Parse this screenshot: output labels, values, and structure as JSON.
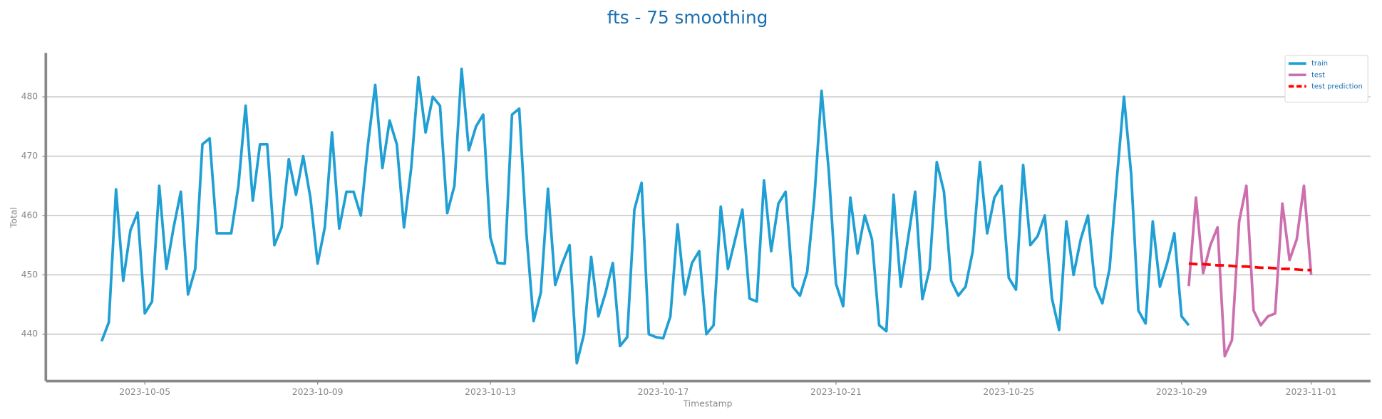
{
  "chart_data": {
    "type": "line",
    "title": "fts - 75 smoothing",
    "x_label": "Timestamp",
    "y_label": "Total",
    "xlim": [
      "2023-10-02 17:00",
      "2023-11-02 09:00"
    ],
    "ylim": [
      432.1,
      487.4
    ],
    "xticks": [
      "2023-10-05",
      "2023-10-09",
      "2023-10-13",
      "2023-10-17",
      "2023-10-21",
      "2023-10-25",
      "2023-10-29",
      "2023-11-01"
    ],
    "yticks": [
      440,
      450,
      460,
      470,
      480
    ],
    "grid": true,
    "legend": "upper right",
    "series": [
      {
        "name": "train",
        "color": "#1f9fd4",
        "linestyle": "solid",
        "x": [
          "2023-10-04 00:00",
          "2023-10-04 04:00",
          "2023-10-04 08:00",
          "2023-10-04 12:00",
          "2023-10-04 16:00",
          "2023-10-04 20:00",
          "2023-10-05 00:00",
          "2023-10-05 04:00",
          "2023-10-05 08:00",
          "2023-10-05 12:00",
          "2023-10-05 16:00",
          "2023-10-05 20:00",
          "2023-10-06 00:00",
          "2023-10-06 04:00",
          "2023-10-06 08:00",
          "2023-10-06 12:00",
          "2023-10-06 16:00",
          "2023-10-06 20:00",
          "2023-10-07 00:00",
          "2023-10-07 04:00",
          "2023-10-07 08:00",
          "2023-10-07 12:00",
          "2023-10-07 16:00",
          "2023-10-07 20:00",
          "2023-10-08 00:00",
          "2023-10-08 04:00",
          "2023-10-08 08:00",
          "2023-10-08 12:00",
          "2023-10-08 16:00",
          "2023-10-08 20:00",
          "2023-10-09 00:00",
          "2023-10-09 04:00",
          "2023-10-09 08:00",
          "2023-10-09 12:00",
          "2023-10-09 16:00",
          "2023-10-09 20:00",
          "2023-10-10 00:00",
          "2023-10-10 04:00",
          "2023-10-10 08:00",
          "2023-10-10 12:00",
          "2023-10-10 16:00",
          "2023-10-10 20:00",
          "2023-10-11 00:00",
          "2023-10-11 04:00",
          "2023-10-11 08:00",
          "2023-10-11 12:00",
          "2023-10-11 16:00",
          "2023-10-11 20:00",
          "2023-10-12 00:00",
          "2023-10-12 04:00",
          "2023-10-12 08:00",
          "2023-10-12 12:00",
          "2023-10-12 16:00",
          "2023-10-12 20:00",
          "2023-10-13 00:00",
          "2023-10-13 04:00",
          "2023-10-13 08:00",
          "2023-10-13 12:00",
          "2023-10-13 16:00",
          "2023-10-13 20:00",
          "2023-10-14 00:00",
          "2023-10-14 04:00",
          "2023-10-14 08:00",
          "2023-10-14 12:00",
          "2023-10-14 16:00",
          "2023-10-14 20:00",
          "2023-10-15 00:00",
          "2023-10-15 04:00",
          "2023-10-15 08:00",
          "2023-10-15 12:00",
          "2023-10-15 16:00",
          "2023-10-15 20:00",
          "2023-10-16 00:00",
          "2023-10-16 04:00",
          "2023-10-16 08:00",
          "2023-10-16 12:00",
          "2023-10-16 16:00",
          "2023-10-16 20:00",
          "2023-10-17 00:00",
          "2023-10-17 04:00",
          "2023-10-17 08:00",
          "2023-10-17 12:00",
          "2023-10-17 16:00",
          "2023-10-17 20:00",
          "2023-10-18 00:00",
          "2023-10-18 04:00",
          "2023-10-18 08:00",
          "2023-10-18 12:00",
          "2023-10-18 16:00",
          "2023-10-18 20:00",
          "2023-10-19 00:00",
          "2023-10-19 04:00",
          "2023-10-19 08:00",
          "2023-10-19 12:00",
          "2023-10-19 16:00",
          "2023-10-19 20:00",
          "2023-10-20 00:00",
          "2023-10-20 04:00",
          "2023-10-20 08:00",
          "2023-10-20 12:00",
          "2023-10-20 16:00",
          "2023-10-20 20:00",
          "2023-10-21 00:00",
          "2023-10-21 04:00",
          "2023-10-21 08:00",
          "2023-10-21 12:00",
          "2023-10-21 16:00",
          "2023-10-21 20:00",
          "2023-10-22 00:00",
          "2023-10-22 04:00",
          "2023-10-22 08:00",
          "2023-10-22 12:00",
          "2023-10-22 16:00",
          "2023-10-22 20:00",
          "2023-10-23 00:00",
          "2023-10-23 04:00",
          "2023-10-23 08:00",
          "2023-10-23 12:00",
          "2023-10-23 16:00",
          "2023-10-23 20:00",
          "2023-10-24 00:00",
          "2023-10-24 04:00",
          "2023-10-24 08:00",
          "2023-10-24 12:00",
          "2023-10-24 16:00",
          "2023-10-24 20:00",
          "2023-10-25 00:00",
          "2023-10-25 04:00",
          "2023-10-25 08:00",
          "2023-10-25 12:00",
          "2023-10-25 16:00",
          "2023-10-25 20:00",
          "2023-10-26 00:00",
          "2023-10-26 04:00",
          "2023-10-26 08:00",
          "2023-10-26 12:00",
          "2023-10-26 16:00",
          "2023-10-26 20:00",
          "2023-10-27 00:00",
          "2023-10-27 04:00",
          "2023-10-27 08:00",
          "2023-10-27 12:00",
          "2023-10-27 16:00",
          "2023-10-27 20:00",
          "2023-10-28 00:00",
          "2023-10-28 04:00",
          "2023-10-28 08:00",
          "2023-10-28 12:00",
          "2023-10-28 16:00",
          "2023-10-28 20:00",
          "2023-10-29 00:00",
          "2023-10-29 04:00"
        ],
        "values": [
          438.8,
          442,
          464.4,
          449,
          457.5,
          460.5,
          443.5,
          445.5,
          465,
          451,
          458,
          464,
          446.7,
          451,
          472,
          473,
          457,
          457,
          457,
          465,
          478.5,
          462.5,
          472,
          472,
          455,
          458,
          469.5,
          463.5,
          470,
          463,
          451.9,
          458,
          474,
          457.8,
          464,
          464,
          460,
          472,
          482,
          468,
          476,
          472,
          458,
          468,
          483.3,
          474,
          480,
          478.5,
          460.4,
          465,
          484.7,
          471,
          475,
          477,
          456.3,
          452,
          451.9,
          477,
          478,
          457,
          442.2,
          447,
          464.5,
          448.3,
          452,
          455,
          435.1,
          440,
          453,
          443,
          447,
          452,
          438,
          439.5,
          461,
          465.5,
          440,
          439.5,
          439.3,
          443,
          458.5,
          446.7,
          452,
          454,
          440,
          441.5,
          461.5,
          451,
          456,
          461,
          446,
          445.5,
          465.9,
          454,
          462,
          464,
          448,
          446.5,
          450.5,
          463,
          481,
          467.5,
          448.5,
          444.7,
          463,
          453.6,
          460,
          456,
          441.5,
          440.5,
          463.5,
          448,
          456,
          464,
          445.9,
          451,
          469,
          464,
          449,
          446.5,
          448,
          454,
          469,
          457,
          463,
          465,
          449.5,
          447.5,
          468.5,
          455,
          456.5,
          460,
          446,
          440.7,
          459,
          450,
          456,
          460,
          448,
          445.2,
          451,
          466,
          480,
          467,
          444,
          441.8,
          459,
          448,
          452,
          457,
          443,
          441.5
        ]
      },
      {
        "name": "test",
        "color": "#cc6fae",
        "linestyle": "solid",
        "x": [
          "2023-10-29 04:00",
          "2023-10-29 08:00",
          "2023-10-29 12:00",
          "2023-10-29 16:00",
          "2023-10-29 20:00",
          "2023-10-30 00:00",
          "2023-10-30 04:00",
          "2023-10-30 08:00",
          "2023-10-30 12:00",
          "2023-10-30 16:00",
          "2023-10-30 20:00",
          "2023-10-31 00:00",
          "2023-10-31 04:00",
          "2023-10-31 08:00",
          "2023-10-31 12:00",
          "2023-10-31 16:00",
          "2023-10-31 20:00",
          "2023-11-01 00:00"
        ],
        "values": [
          448.1,
          463,
          450.3,
          455,
          458,
          436.3,
          439,
          459,
          465,
          444,
          441.5,
          443,
          443.5,
          462,
          452.5,
          456,
          465,
          450
        ]
      },
      {
        "name": "test prediction",
        "color": "#ff0000",
        "linestyle": "dashed",
        "x": [
          "2023-10-29 04:00",
          "2023-10-29 08:00",
          "2023-10-29 12:00",
          "2023-10-29 16:00",
          "2023-10-29 20:00",
          "2023-10-30 00:00",
          "2023-10-30 04:00",
          "2023-10-30 08:00",
          "2023-10-30 12:00",
          "2023-10-30 16:00",
          "2023-10-30 20:00",
          "2023-10-31 00:00",
          "2023-10-31 04:00",
          "2023-10-31 08:00",
          "2023-10-31 12:00",
          "2023-10-31 16:00",
          "2023-10-31 20:00",
          "2023-11-01 00:00"
        ],
        "values": [
          451.9,
          451.8,
          451.8,
          451.7,
          451.6,
          451.6,
          451.5,
          451.4,
          451.4,
          451.3,
          451.2,
          451.2,
          451.1,
          451.0,
          451.0,
          450.9,
          450.8,
          450.8
        ]
      }
    ]
  }
}
